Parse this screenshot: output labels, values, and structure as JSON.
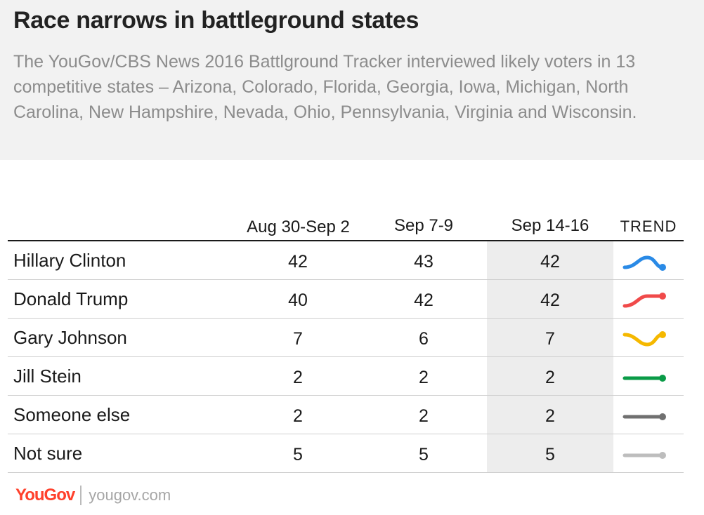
{
  "header": {
    "title": "Race narrows in battleground states",
    "subtitle": "The YouGov/CBS News 2016 Battlground Tracker interviewed likely voters in 13 competitive states – Arizona, Colorado, Florida, Georgia, Iowa, Michigan, North Carolina, New Hampshire, Nevada, Ohio, Pennsylvania, Virginia and Wisconsin."
  },
  "table": {
    "columns": [
      "Aug 30-Sep 2",
      "Sep 7-9",
      "Sep 14-16"
    ],
    "trend_label": "TREND",
    "highlight_column": "Sep 14-16"
  },
  "chart_data": {
    "type": "table",
    "title": "Race narrows in battleground states",
    "categories": [
      "Aug 30-Sep 2",
      "Sep 7-9",
      "Sep 14-16"
    ],
    "series": [
      {
        "name": "Hillary Clinton",
        "values": [
          42,
          43,
          42
        ],
        "color": "#2a8ae6"
      },
      {
        "name": "Donald Trump",
        "values": [
          40,
          42,
          42
        ],
        "color": "#f04a4a"
      },
      {
        "name": "Gary Johnson",
        "values": [
          7,
          6,
          7
        ],
        "color": "#f5b800"
      },
      {
        "name": "Jill Stein",
        "values": [
          2,
          2,
          2
        ],
        "color": "#0a9b47"
      },
      {
        "name": "Someone else",
        "values": [
          2,
          2,
          2
        ],
        "color": "#707070"
      },
      {
        "name": "Not sure",
        "values": [
          5,
          5,
          5
        ],
        "color": "#bdbdbd"
      }
    ]
  },
  "footer": {
    "logo": "YouGov",
    "site": "yougov.com"
  }
}
